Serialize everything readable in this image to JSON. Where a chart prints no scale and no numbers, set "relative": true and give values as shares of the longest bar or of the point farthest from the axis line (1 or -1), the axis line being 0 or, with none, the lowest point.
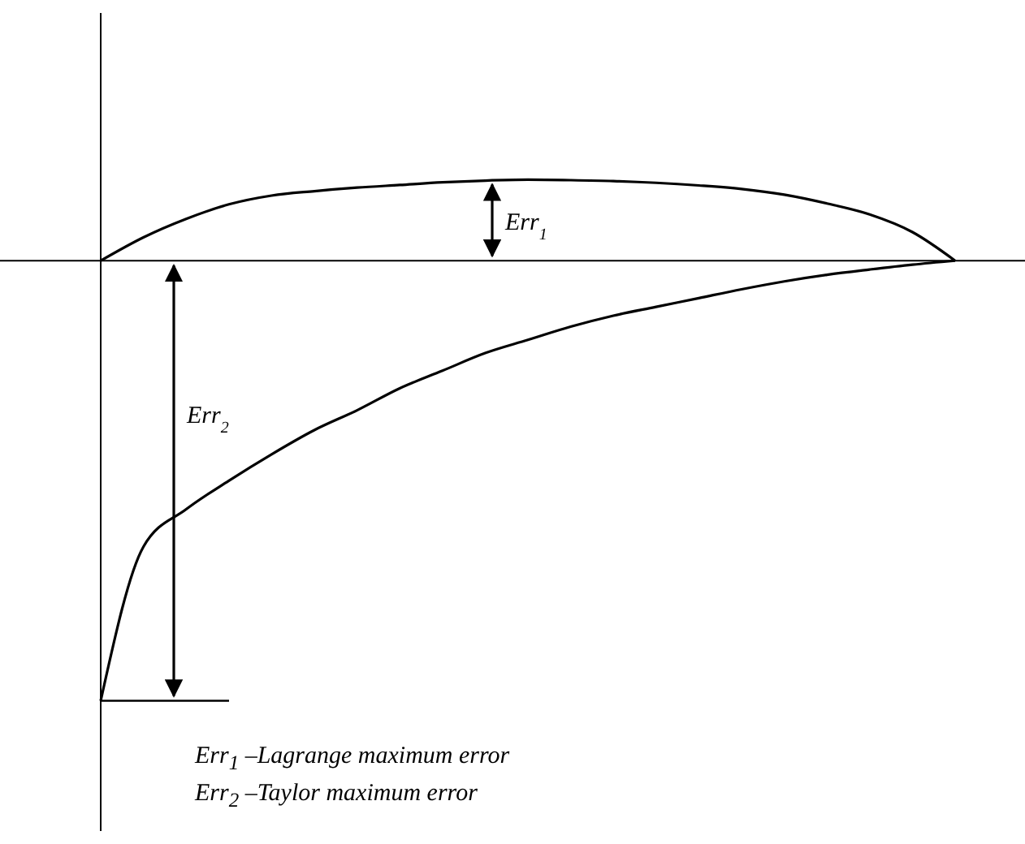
{
  "chart_data": {
    "type": "line",
    "relative": true,
    "marker": "none",
    "line_style": "solid",
    "categories": [
      null,
      null,
      null,
      null,
      null,
      null,
      null,
      null,
      null,
      null,
      null,
      null,
      null,
      null,
      null,
      null,
      null,
      null,
      null,
      null,
      null
    ],
    "series": [
      {
        "color": "#000000",
        "values": [
          0,
          0.053,
          0.095,
          0.128,
          0.148,
          0.158,
          0.166,
          0.172,
          0.178,
          0.182,
          0.184,
          0.183,
          0.181,
          0.177,
          0.171,
          0.163,
          0.15,
          0.13,
          0.105,
          0.065,
          0
        ]
      },
      {
        "color": "#000000",
        "values": [
          -1,
          -0.65,
          -0.565,
          -0.5,
          -0.44,
          -0.385,
          -0.34,
          -0.29,
          -0.25,
          -0.21,
          -0.18,
          -0.15,
          -0.125,
          -0.105,
          -0.085,
          -0.065,
          -0.047,
          -0.032,
          -0.02,
          -0.009,
          0
        ]
      }
    ],
    "annotations": [
      "Err$_{1}$",
      "Err$_{2}$",
      "Err$_{1}$ –Lagrange maximum error",
      "Err$_{2}$ –Taylor maximum error"
    ]
  }
}
